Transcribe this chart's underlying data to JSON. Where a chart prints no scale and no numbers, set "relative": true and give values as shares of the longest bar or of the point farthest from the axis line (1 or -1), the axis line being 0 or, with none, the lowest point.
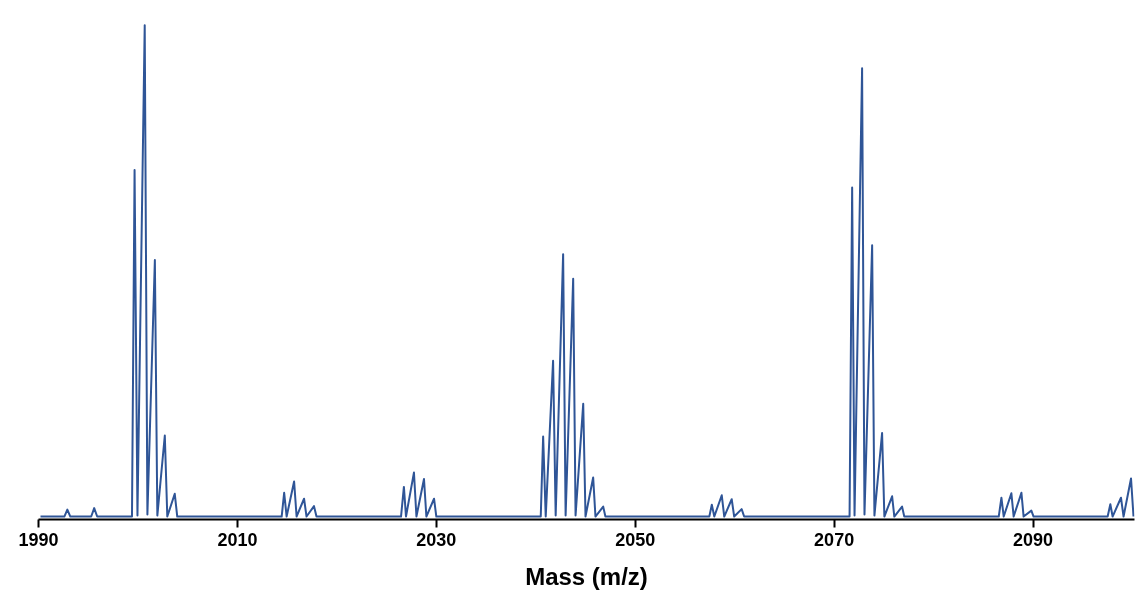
{
  "chart_data": {
    "type": "line",
    "relative": true,
    "xlabel": "Mass (m/z)",
    "xlim": [
      1990,
      2100.2
    ],
    "xticks": [
      1990,
      2010,
      2030,
      2050,
      2070,
      2090
    ],
    "grid": false,
    "marker": "none",
    "line_style": "solid",
    "series": [
      {
        "color": "#2f5597",
        "x": [
          1990.2,
          1992.6,
          1992.9,
          1993.2,
          1995.3,
          1995.6,
          1995.9,
          1999.4,
          1999.66,
          1999.95,
          2000.68,
          2000.95,
          2001.7,
          2001.95,
          2002.7,
          2002.95,
          2003.7,
          2003.95,
          2014.45,
          2014.7,
          2014.95,
          2015.7,
          2015.95,
          2016.7,
          2016.95,
          2017.7,
          2017.95,
          2026.45,
          2026.74,
          2026.95,
          2027.75,
          2028.0,
          2028.76,
          2029.0,
          2029.77,
          2030.0,
          2040.5,
          2040.74,
          2041.0,
          2041.74,
          2042.0,
          2042.75,
          2043.0,
          2043.76,
          2044.0,
          2044.77,
          2045.0,
          2045.77,
          2046.0,
          2046.78,
          2047.0,
          2057.45,
          2057.7,
          2057.95,
          2058.7,
          2058.95,
          2059.7,
          2059.95,
          2060.7,
          2060.95,
          2071.55,
          2071.81,
          2072.05,
          2072.81,
          2073.05,
          2073.82,
          2074.05,
          2074.82,
          2075.05,
          2075.83,
          2076.05,
          2076.83,
          2077.05,
          2086.55,
          2086.82,
          2087.05,
          2087.82,
          2088.05,
          2088.83,
          2089.05,
          2089.83,
          2090.05,
          2097.5,
          2097.77,
          2098.0,
          2098.84,
          2099.1,
          2099.85,
          2100.1
        ],
        "values": [
          0.006,
          0.006,
          0.02,
          0.006,
          0.006,
          0.023,
          0.006,
          0.006,
          0.707,
          0.008,
          1.0,
          0.01,
          0.525,
          0.008,
          0.17,
          0.006,
          0.052,
          0.006,
          0.006,
          0.054,
          0.006,
          0.077,
          0.006,
          0.042,
          0.006,
          0.027,
          0.006,
          0.006,
          0.066,
          0.006,
          0.095,
          0.006,
          0.082,
          0.006,
          0.042,
          0.006,
          0.006,
          0.168,
          0.006,
          0.321,
          0.008,
          0.537,
          0.008,
          0.487,
          0.008,
          0.234,
          0.006,
          0.085,
          0.006,
          0.026,
          0.006,
          0.006,
          0.03,
          0.006,
          0.049,
          0.006,
          0.041,
          0.006,
          0.021,
          0.006,
          0.006,
          0.672,
          0.008,
          0.913,
          0.01,
          0.555,
          0.008,
          0.175,
          0.006,
          0.047,
          0.006,
          0.026,
          0.006,
          0.006,
          0.044,
          0.006,
          0.053,
          0.006,
          0.054,
          0.006,
          0.018,
          0.006,
          0.006,
          0.031,
          0.006,
          0.044,
          0.006,
          0.083,
          0.006
        ]
      }
    ]
  }
}
